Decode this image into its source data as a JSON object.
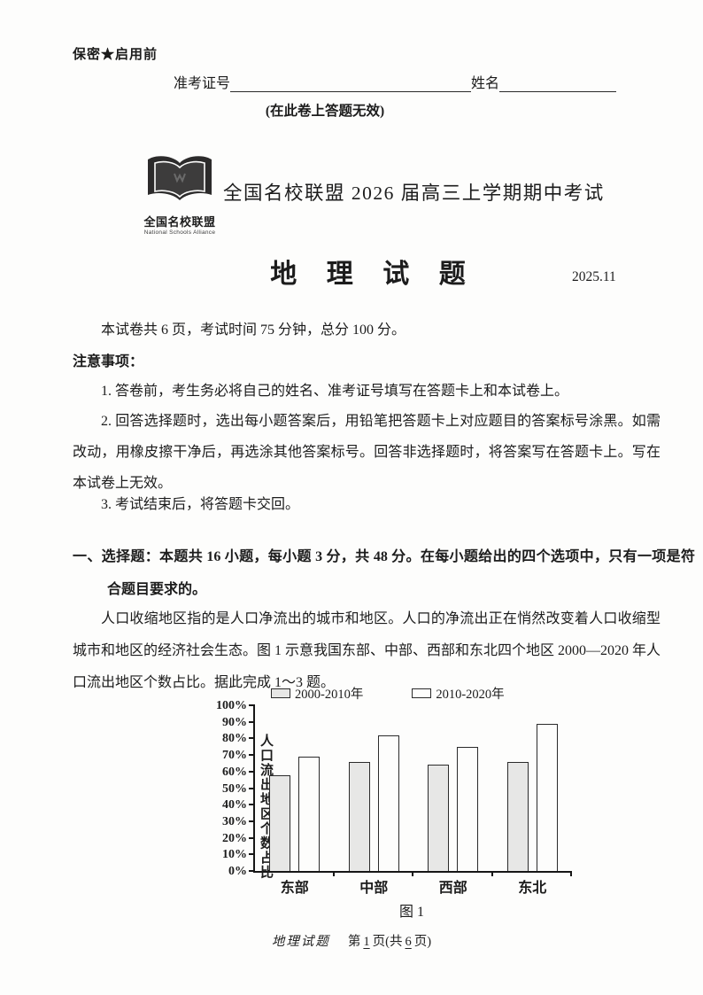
{
  "page": {
    "security_notice": "保密★启用前",
    "ticket_label": "准考证号",
    "name_label": "姓名",
    "invalid_notice": "(在此卷上答题无效)",
    "logo": {
      "icon": "open-book-icon",
      "name": "全国名校联盟",
      "subtitle": "National Schools Alliance"
    },
    "exam_session_title": "全国名校联盟 2026 届高三上学期期中考试",
    "subject_title": "地 理 试 题",
    "exam_date": "2025.11",
    "intro": "本试卷共 6 页，考试时间 75 分钟，总分 100 分。",
    "notes_heading": "注意事项：",
    "notes": [
      "1. 答卷前，考生务必将自己的姓名、准考证号填写在答题卡上和本试卷上。",
      "2. 回答选择题时，选出每小题答案后，用铅笔把答题卡上对应题目的答案标号涂黑。如需改动，用橡皮擦干净后，再选涂其他答案标号。回答非选择题时，将答案写在答题卡上。写在本试卷上无效。",
      "3. 考试结束后，将答题卡交回。"
    ],
    "section_heading": "一、选择题：本题共 16 小题，每小题 3 分，共 48 分。在每小题给出的四个选项中，只有一项是符合题目要求的。",
    "passage": "人口收缩地区指的是人口净流出的城市和地区。人口的净流出正在悄然改变着人口收缩型城市和地区的经济社会生态。图 1 示意我国东部、中部、西部和东北四个地区 2000—2020 年人口流出地区个数占比。据此完成 1～3 题。",
    "figure_caption": "图 1",
    "footer": {
      "subject": "地理试题",
      "page_label_prefix": "第",
      "page_number": "1",
      "page_label_mid": "页(共",
      "total_pages": "6",
      "page_label_suffix": "页)"
    }
  },
  "chart_data": {
    "type": "bar",
    "title": "图 1",
    "categories": [
      "东部",
      "中部",
      "西部",
      "东北"
    ],
    "series": [
      {
        "name": "2000-2010年",
        "values": [
          58,
          66,
          64,
          66
        ],
        "fill": "#e7e7e6"
      },
      {
        "name": "2010-2020年",
        "values": [
          69,
          82,
          75,
          89
        ],
        "fill": "#fdfdfc"
      }
    ],
    "xlabel": "",
    "ylabel": "人口流出地区个数占比",
    "ylim": [
      0,
      100
    ],
    "ytick_step": 10,
    "ytick_suffix": "%",
    "legend_position": "top",
    "grid": false,
    "bar_border_color": "#2b2b2b"
  }
}
